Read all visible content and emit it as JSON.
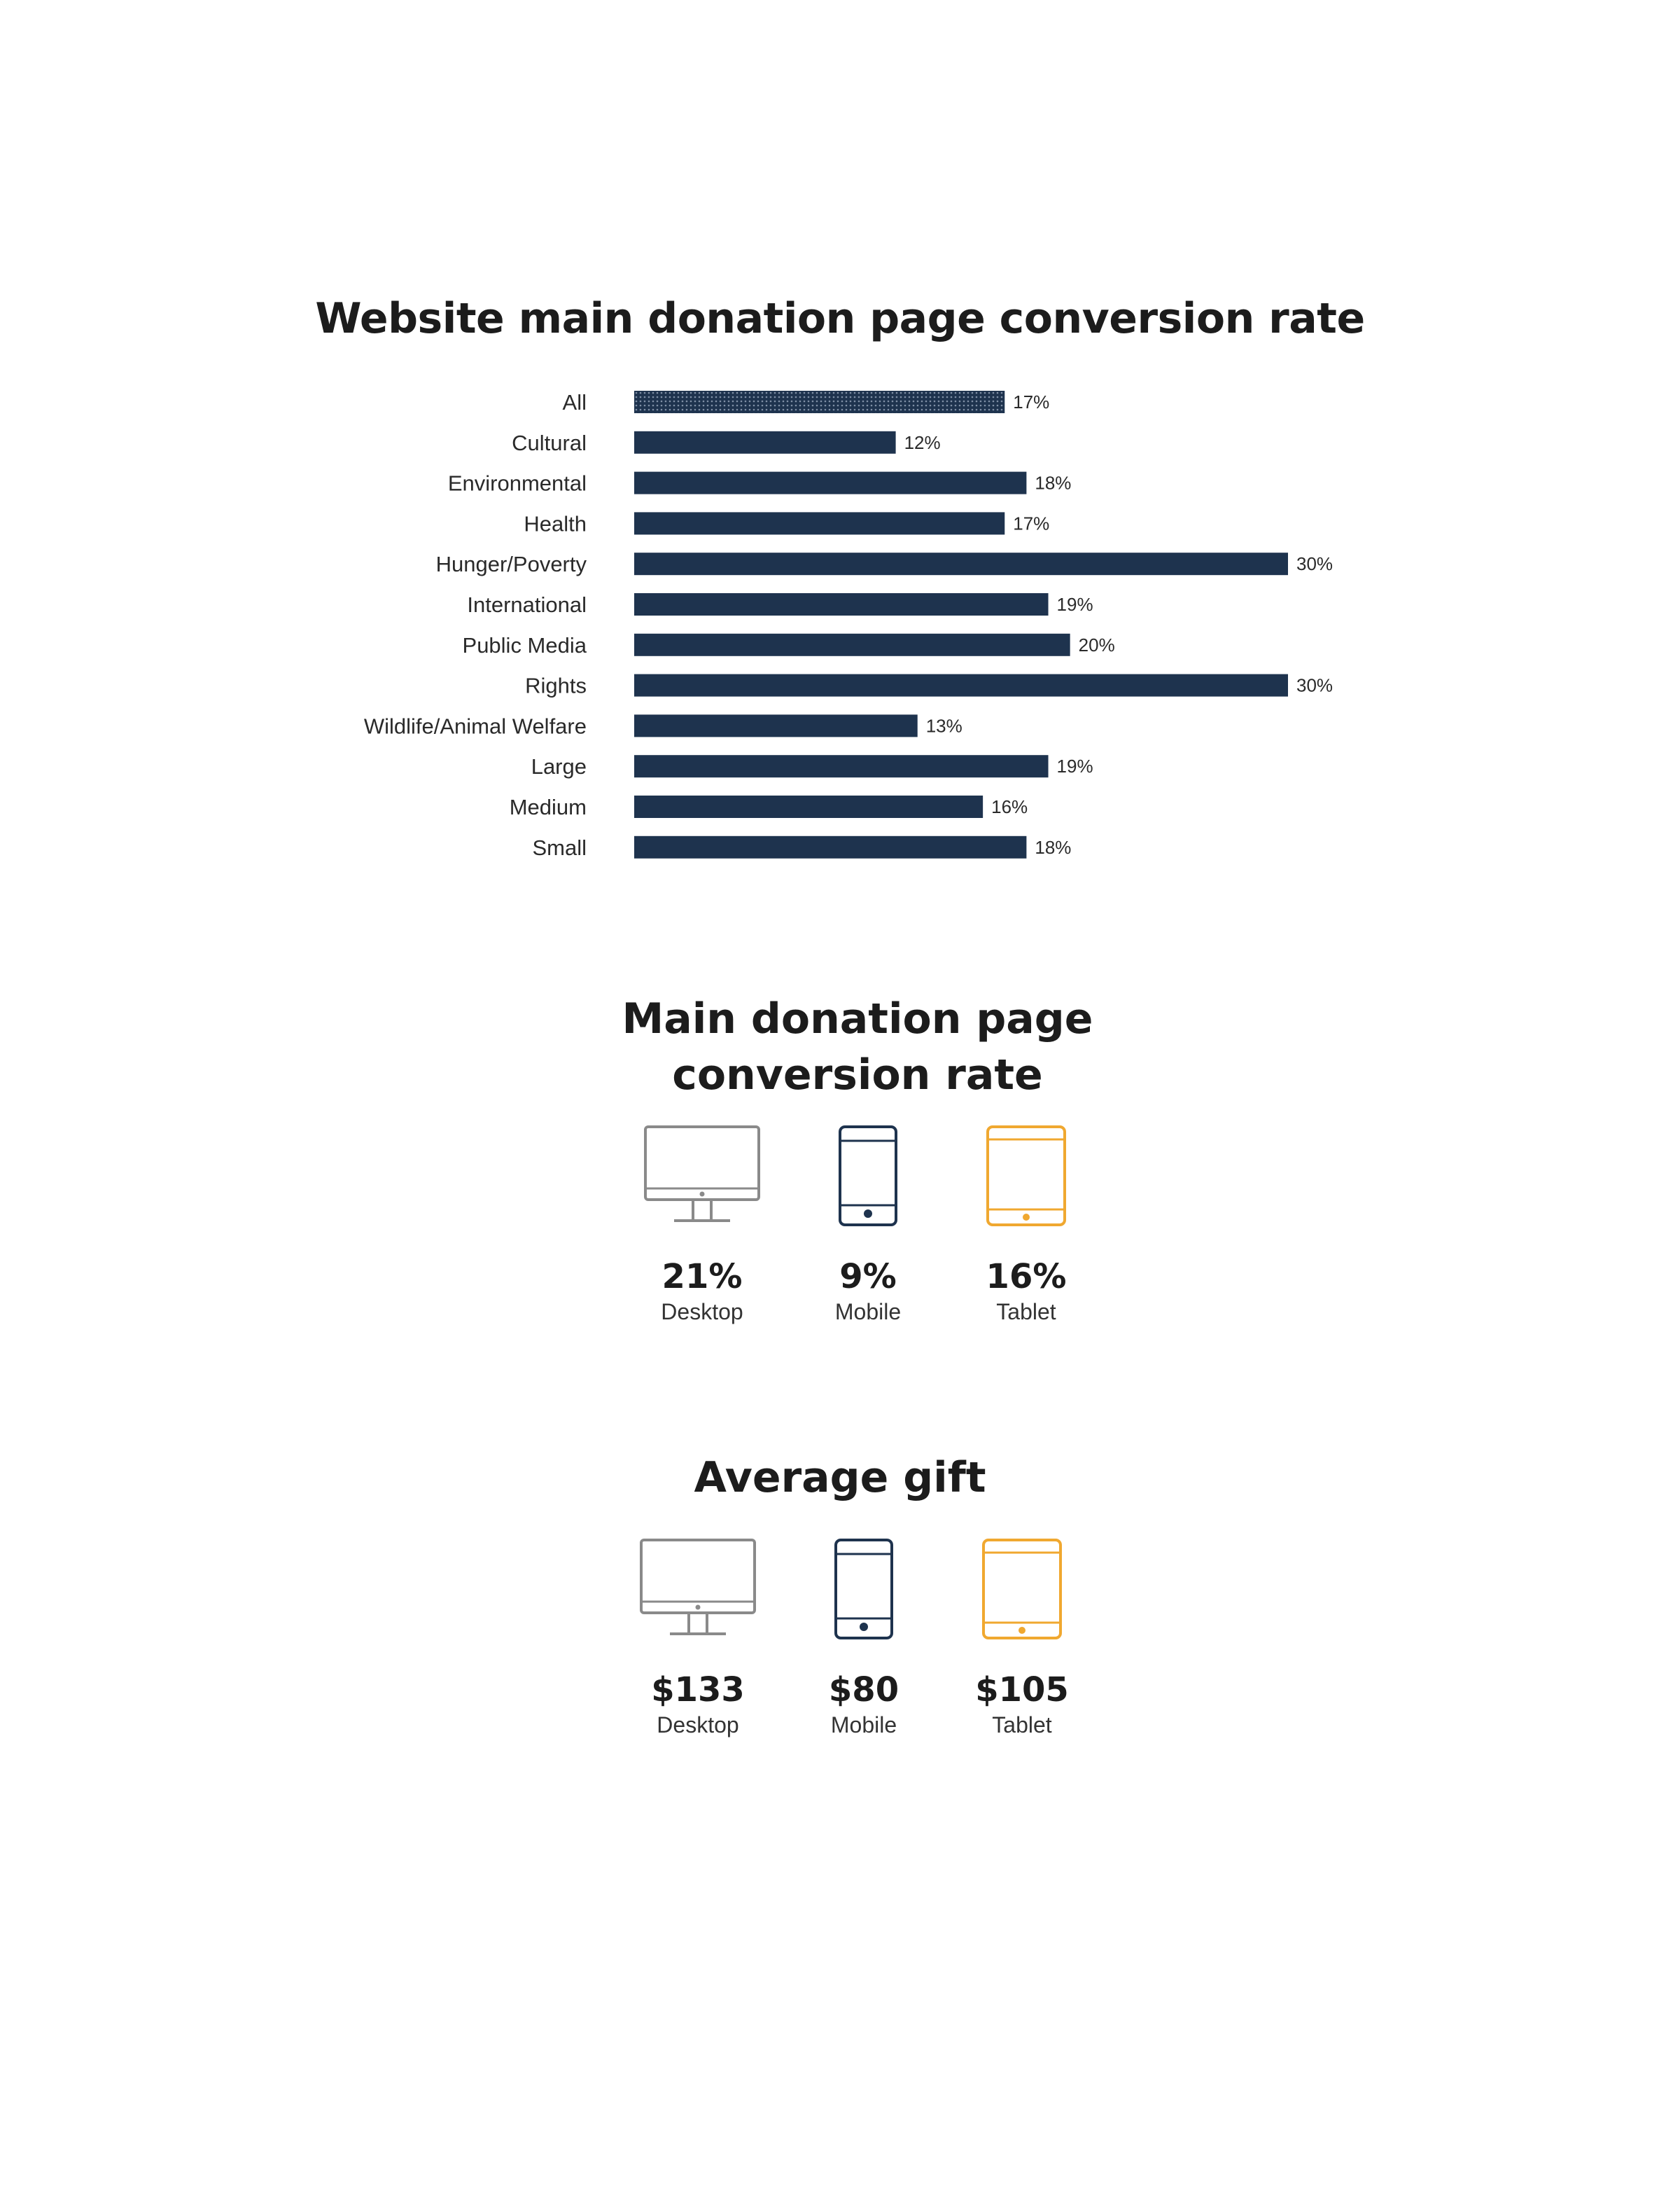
{
  "chart_data": {
    "type": "bar",
    "orientation": "horizontal",
    "title": "Website main donation page conversion rate",
    "xlabel": "",
    "ylabel": "",
    "categories": [
      "All",
      "Cultural",
      "Environmental",
      "Health",
      "Hunger/Poverty",
      "International",
      "Public Media",
      "Rights",
      "Wildlife/Animal Welfare",
      "Large",
      "Medium",
      "Small"
    ],
    "values": [
      17,
      12,
      18,
      17,
      30,
      19,
      20,
      30,
      13,
      19,
      16,
      18
    ],
    "value_labels": [
      "17%",
      "12%",
      "18%",
      "17%",
      "30%",
      "19%",
      "20%",
      "30%",
      "13%",
      "19%",
      "16%",
      "18%"
    ],
    "xlim": [
      0,
      30
    ],
    "grid": false,
    "legend": "none",
    "highlight_category": "All",
    "colors": {
      "bar": "#1e334e",
      "highlight_pattern": "dotted"
    }
  },
  "device_conversion": {
    "title": "Main donation page conversion rate",
    "items": [
      {
        "icon": "desktop-icon",
        "value": "21%",
        "label": "Desktop",
        "color": "#8a8a8a"
      },
      {
        "icon": "mobile-icon",
        "value": "9%",
        "label": "Mobile",
        "color": "#1e334e"
      },
      {
        "icon": "tablet-icon",
        "value": "16%",
        "label": "Tablet",
        "color": "#f0a830"
      }
    ]
  },
  "average_gift": {
    "title": "Average gift",
    "items": [
      {
        "icon": "desktop-icon",
        "value": "$133",
        "label": "Desktop",
        "color": "#8a8a8a"
      },
      {
        "icon": "mobile-icon",
        "value": "$80",
        "label": "Mobile",
        "color": "#1e334e"
      },
      {
        "icon": "tablet-icon",
        "value": "$105",
        "label": "Tablet",
        "color": "#f0a830"
      }
    ]
  }
}
